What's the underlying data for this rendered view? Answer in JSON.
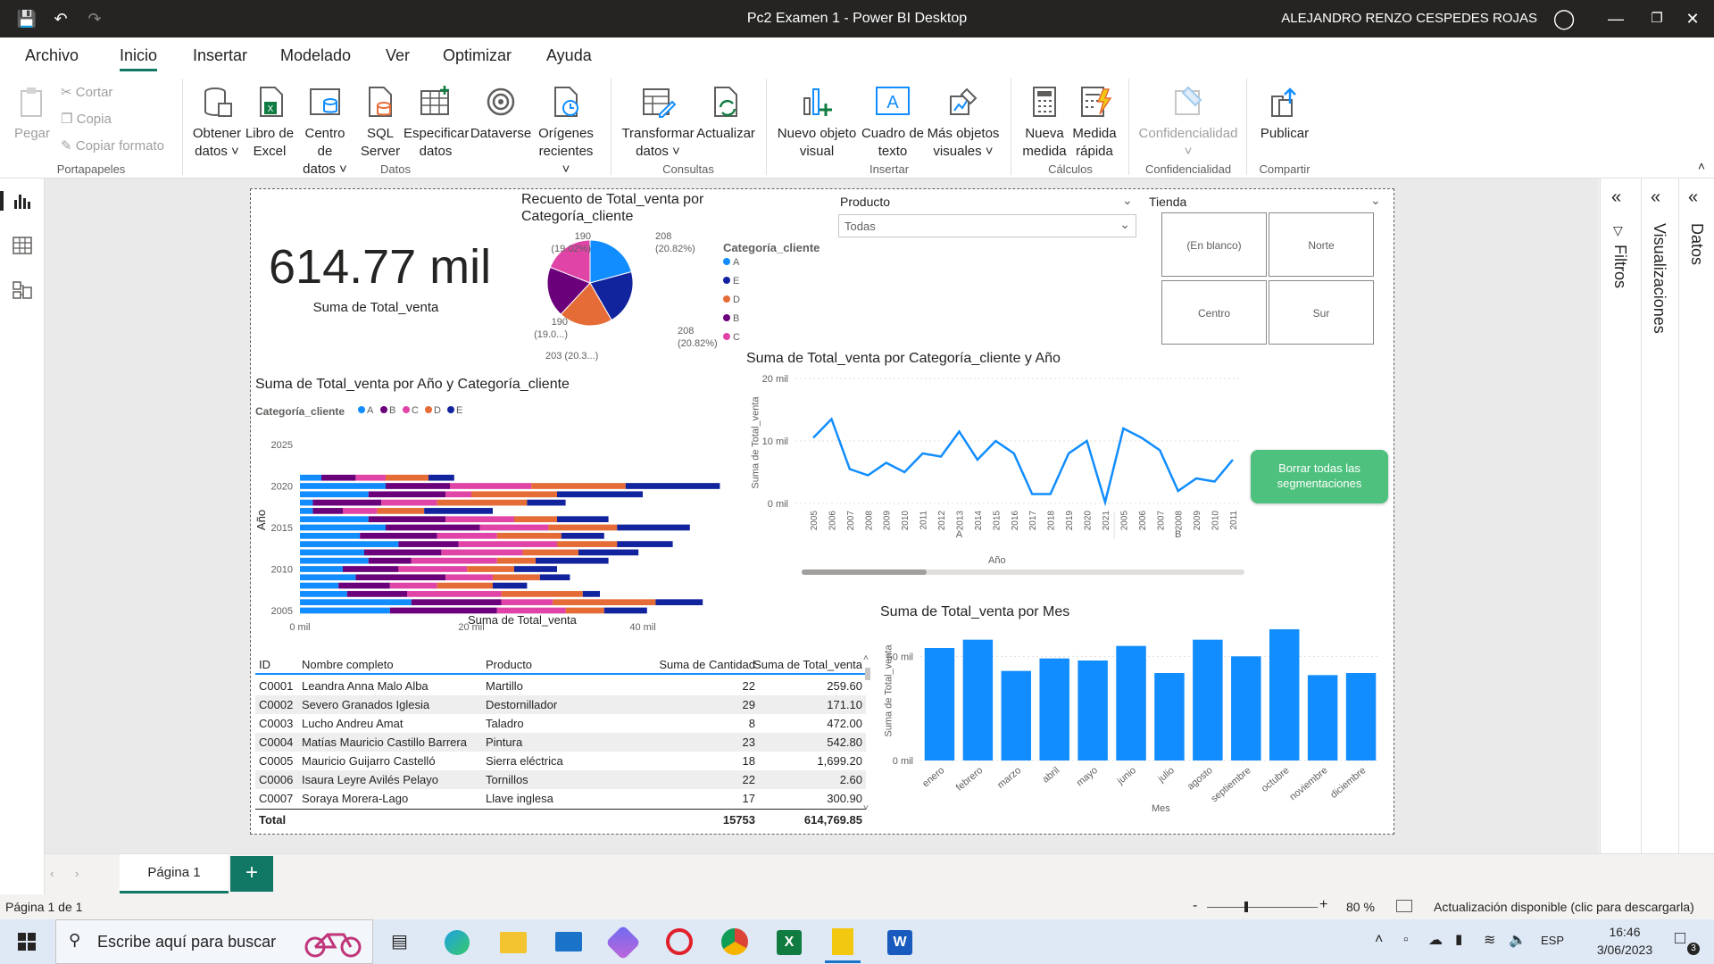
{
  "window": {
    "title": "Pc2 Examen 1 - Power BI Desktop",
    "user": "ALEJANDRO RENZO CESPEDES ROJAS"
  },
  "menu": [
    "Archivo",
    "Inicio",
    "Insertar",
    "Modelado",
    "Ver",
    "Optimizar",
    "Ayuda"
  ],
  "ribbon": {
    "clipboard": {
      "paste": "Pegar",
      "cut": "Cortar",
      "copy": "Copia",
      "format": "Copiar formato",
      "group": "Portapapeles"
    },
    "data": {
      "get_data": [
        "Obtener",
        "datos"
      ],
      "excel": [
        "Libro de",
        "Excel"
      ],
      "datacenter": [
        "Centro de",
        "datos"
      ],
      "sql": [
        "SQL",
        "Server"
      ],
      "enter": [
        "Especificar",
        "datos"
      ],
      "dataverse": "Dataverse",
      "recent": [
        "Orígenes",
        "recientes"
      ],
      "group": "Datos"
    },
    "queries": {
      "transform": [
        "Transformar",
        "datos"
      ],
      "refresh": "Actualizar",
      "group": "Consultas"
    },
    "insert": {
      "new_visual": [
        "Nuevo objeto",
        "visual"
      ],
      "textbox": [
        "Cuadro de",
        "texto"
      ],
      "more": [
        "Más objetos",
        "visuales"
      ],
      "group": "Insertar"
    },
    "calc": {
      "new_measure": [
        "Nueva",
        "medida"
      ],
      "quick": [
        "Medida",
        "rápida"
      ],
      "group": "Cálculos"
    },
    "sens": {
      "label": "Confidencialidad",
      "group": "Confidencialidad"
    },
    "share": {
      "publish": "Publicar",
      "group": "Compartir"
    }
  },
  "kpi": {
    "value": "614.77 mil",
    "label": "Suma de Total_venta"
  },
  "pie": {
    "title_l1": "Recuento de Total_venta por",
    "title_l2": "Categoría_cliente",
    "legend_title": "Categoría_cliente",
    "labels": [
      {
        "v": "208",
        "p": "(20.82%)"
      },
      {
        "v": "208",
        "p": "(20.82%)"
      },
      {
        "v": "203",
        "p": "(20.3...)"
      },
      {
        "v": "190",
        "p": "(19.0...)"
      },
      {
        "v": "190",
        "p": "(19.02%)"
      }
    ]
  },
  "slicer_producto": {
    "title": "Producto",
    "value": "Todas"
  },
  "slicer_tienda": {
    "title": "Tienda",
    "tiles": [
      "(En blanco)",
      "Norte",
      "Centro",
      "Sur"
    ]
  },
  "clear_button": {
    "l1": "Borrar todas las",
    "l2": "segmentaciones"
  },
  "bar_chart": {
    "title": "Suma de Total_venta por Año y Categoría_cliente",
    "legend_title": "Categoría_cliente",
    "xlabel": "Suma de Total_venta",
    "ylabel": "Año"
  },
  "line_chart": {
    "title": "Suma de Total_venta por Categoría_cliente y Año",
    "xlabel": "Año",
    "ylabel": "Suma de Total_venta"
  },
  "month_chart": {
    "title": "Suma de Total_venta por Mes",
    "xlabel": "Mes",
    "ylabel": "Suma de Total_venta"
  },
  "table": {
    "headers": [
      "ID",
      "Nombre completo",
      "Producto",
      "Suma de Cantidad",
      "Suma de Total_venta"
    ],
    "rows": [
      [
        "C0001",
        "Leandra Anna Malo Alba",
        "Martillo",
        "22",
        "259.60"
      ],
      [
        "C0002",
        "Severo Granados Iglesia",
        "Destornillador",
        "29",
        "171.10"
      ],
      [
        "C0003",
        "Lucho Andreu Amat",
        "Taladro",
        "8",
        "472.00"
      ],
      [
        "C0004",
        "Matías Mauricio Castillo Barrera",
        "Pintura",
        "23",
        "542.80"
      ],
      [
        "C0005",
        "Mauricio Guijarro Castelló",
        "Sierra eléctrica",
        "18",
        "1,699.20"
      ],
      [
        "C0006",
        "Isaura Leyre Avilés Pelayo",
        "Tornillos",
        "22",
        "2.60"
      ],
      [
        "C0007",
        "Soraya Morera-Lago",
        "Llave inglesa",
        "17",
        "300.90"
      ]
    ],
    "total": [
      "Total",
      "15753",
      "614,769.85"
    ]
  },
  "panes": {
    "filters": "Filtros",
    "visualizations": "Visualizaciones",
    "data": "Datos"
  },
  "tabs": {
    "page": "Página 1",
    "add": "+"
  },
  "status": {
    "page": "Página 1 de 1",
    "zoom": "80 %",
    "update": "Actualización disponible (clic para descargarla)"
  },
  "taskbar": {
    "search": "Escribe aquí para buscar",
    "lang": "ESP",
    "time": "16:46",
    "date": "3/06/2023",
    "notif": "3"
  },
  "colors": {
    "A": "#118dff",
    "B": "#6b007b",
    "C": "#e044a7",
    "D": "#e66c37",
    "E": "#12239e",
    "accent": "#117865"
  },
  "chart_data": [
    {
      "type": "pie",
      "title": "Recuento de Total_venta por Categoría_cliente",
      "legend": [
        "A",
        "E",
        "D",
        "B",
        "C"
      ],
      "values": [
        208,
        208,
        203,
        190,
        190
      ]
    },
    {
      "type": "bar",
      "title": "Suma de Total_venta por Año y Categoría_cliente",
      "stacked": true,
      "orientation": "horizontal",
      "xlim": [
        0,
        50
      ],
      "x_unit": "mil",
      "y_ticks": [
        "2005",
        "2010",
        "2015",
        "2020",
        "2025"
      ],
      "categories": [
        "2005",
        "2006",
        "2007",
        "2008",
        "2009",
        "2010",
        "2011",
        "2012",
        "2013",
        "2014",
        "2015",
        "2016",
        "2017",
        "2018",
        "2019",
        "2020",
        "2021"
      ],
      "series": [
        {
          "name": "A",
          "values": [
            10.5,
            13,
            5.5,
            4.5,
            6.5,
            5,
            8,
            7.5,
            11.5,
            7,
            10,
            8,
            1.5,
            1.5,
            8,
            10,
            2.5
          ]
        },
        {
          "name": "B",
          "values": [
            12.5,
            10.5,
            7,
            6,
            10.5,
            6.5,
            5,
            9,
            7,
            9,
            11,
            9,
            3.5,
            8,
            9,
            7.5,
            4
          ]
        },
        {
          "name": "C",
          "values": [
            8,
            6,
            11,
            5.5,
            5.5,
            8,
            10,
            9.5,
            11.5,
            7,
            8,
            8,
            4,
            6.5,
            3,
            9.5,
            3.5
          ]
        },
        {
          "name": "D",
          "values": [
            4.5,
            12,
            9.5,
            6.5,
            5.5,
            5.5,
            4.5,
            6.5,
            7,
            7.5,
            8,
            5,
            5.5,
            10.5,
            10,
            11,
            5
          ]
        },
        {
          "name": "E",
          "values": [
            5,
            5.5,
            2,
            4,
            3.5,
            5,
            8.5,
            7,
            6.5,
            5,
            8.5,
            6,
            8,
            4.5,
            10,
            11,
            3
          ]
        }
      ]
    },
    {
      "type": "line",
      "title": "Suma de Total_venta por Categoría_cliente y Año",
      "ylim": [
        0,
        20
      ],
      "y_unit": "mil",
      "groups": [
        "A",
        "B"
      ],
      "x": [
        "2005",
        "2006",
        "2007",
        "2008",
        "2009",
        "2010",
        "2011",
        "2012",
        "2013",
        "2014",
        "2015",
        "2016",
        "2017",
        "2018",
        "2019",
        "2020",
        "2021",
        "2005",
        "2006",
        "2007",
        "2008",
        "2009",
        "2010",
        "2011"
      ],
      "values": [
        10.5,
        13.5,
        5.5,
        4.5,
        6.5,
        5,
        8,
        7.5,
        11.5,
        7,
        10,
        8,
        1.5,
        1.5,
        8,
        10,
        0.2,
        12,
        10.5,
        8.5,
        2,
        4,
        3.5,
        7
      ]
    },
    {
      "type": "bar",
      "title": "Suma de Total_venta por Mes",
      "ylim": [
        0,
        60
      ],
      "y_ticks": [
        "0 mil",
        "50 mil"
      ],
      "categories": [
        "enero",
        "febrero",
        "marzo",
        "abril",
        "mayo",
        "junio",
        "julio",
        "agosto",
        "septiembre",
        "octubre",
        "noviembre",
        "diciembre"
      ],
      "values": [
        54,
        58,
        43,
        49,
        48,
        55,
        42,
        58,
        50,
        63,
        41,
        42
      ]
    }
  ]
}
